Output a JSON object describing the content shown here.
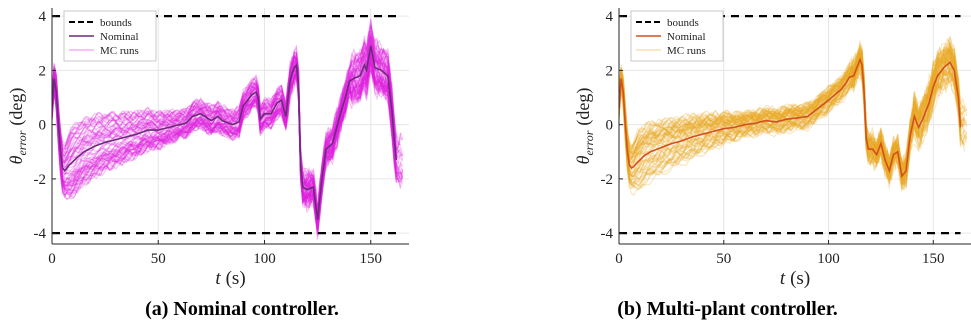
{
  "chart_data": [
    {
      "type": "line",
      "panel_label": "(a) Nominal controller.",
      "xlabel": "t (s)",
      "xlabel_var": "t",
      "xlabel_unit": "(s)",
      "ylabel": "θ_error (deg)",
      "ylabel_var": "θ",
      "ylabel_sub": "error",
      "ylabel_unit": "(deg)",
      "xlim": [
        0,
        168
      ],
      "ylim": [
        -4.4,
        4.3
      ],
      "xticks": [
        0,
        50,
        100,
        150
      ],
      "yticks": [
        -4,
        -2,
        0,
        2,
        4
      ],
      "grid": true,
      "legend_position": "top-left",
      "colors": {
        "bounds": "#000000",
        "nominal": "#6a2c7a",
        "mc": "#e020e0"
      },
      "series": [
        {
          "name": "bounds",
          "style": "dashed",
          "upper": 4,
          "lower": -4,
          "x_range": [
            0,
            163
          ]
        },
        {
          "name": "Nominal",
          "x": [
            0,
            1,
            2,
            3,
            4,
            5,
            6,
            7,
            8,
            10,
            12,
            15,
            20,
            25,
            30,
            35,
            40,
            45,
            50,
            55,
            60,
            63,
            66,
            70,
            75,
            78,
            80,
            85,
            88,
            90,
            94,
            96,
            97,
            98,
            100,
            103,
            106,
            108,
            110,
            112,
            113,
            114,
            115,
            116,
            117,
            118,
            120,
            123,
            125,
            127,
            129,
            132,
            135,
            138,
            140,
            142,
            145,
            147,
            148,
            150,
            152,
            155,
            158,
            160,
            161,
            162
          ],
          "y": [
            0.6,
            1.7,
            1.2,
            0.0,
            -1.0,
            -1.6,
            -1.7,
            -1.6,
            -1.5,
            -1.35,
            -1.2,
            -1.0,
            -0.8,
            -0.65,
            -0.55,
            -0.45,
            -0.35,
            -0.2,
            -0.2,
            -0.1,
            0.0,
            0.05,
            0.3,
            0.4,
            0.15,
            0.3,
            0.15,
            0.0,
            0.1,
            0.7,
            1.1,
            1.2,
            1.0,
            0.2,
            0.4,
            0.4,
            0.8,
            0.9,
            0.3,
            1.6,
            1.9,
            2.1,
            2.2,
            1.5,
            -1.5,
            -2.3,
            -2.4,
            -2.3,
            -3.5,
            -2.0,
            -0.9,
            -0.7,
            0.2,
            1.0,
            1.6,
            1.7,
            1.8,
            2.2,
            2.0,
            2.9,
            2.1,
            2.0,
            1.8,
            0.5,
            -0.5,
            -1.3
          ]
        },
        {
          "name": "MC runs",
          "band_halfwidth_deg": 0.8
        }
      ]
    },
    {
      "type": "line",
      "panel_label": "(b) Multi-plant controller.",
      "xlabel": "t (s)",
      "xlabel_var": "t",
      "xlabel_unit": "(s)",
      "ylabel": "θ_error (deg)",
      "ylabel_var": "θ",
      "ylabel_sub": "error",
      "ylabel_unit": "(deg)",
      "xlim": [
        0,
        168
      ],
      "ylim": [
        -4.4,
        4.3
      ],
      "xticks": [
        0,
        50,
        100,
        150
      ],
      "yticks": [
        -4,
        -2,
        0,
        2,
        4
      ],
      "grid": true,
      "legend_position": "top-left",
      "colors": {
        "bounds": "#000000",
        "nominal": "#d2501e",
        "mc": "#e8a825"
      },
      "series": [
        {
          "name": "bounds",
          "style": "dashed",
          "upper": 4,
          "lower": -4,
          "x_range": [
            0,
            163
          ]
        },
        {
          "name": "Nominal",
          "x": [
            0,
            1,
            2,
            3,
            4,
            5,
            6,
            7,
            8,
            10,
            12,
            15,
            20,
            25,
            30,
            35,
            40,
            45,
            50,
            55,
            60,
            65,
            70,
            75,
            80,
            85,
            90,
            95,
            100,
            103,
            106,
            108,
            110,
            112,
            114,
            115,
            116,
            117,
            118,
            119,
            121,
            123,
            125,
            127,
            129,
            131,
            133,
            135,
            137,
            139,
            141,
            143,
            145,
            148,
            150,
            152,
            155,
            158,
            160,
            162,
            163
          ],
          "y": [
            0.6,
            1.7,
            1.2,
            0.0,
            -1.0,
            -1.5,
            -1.6,
            -1.55,
            -1.45,
            -1.3,
            -1.15,
            -1.0,
            -0.85,
            -0.7,
            -0.6,
            -0.45,
            -0.35,
            -0.25,
            -0.15,
            -0.1,
            0.0,
            0.05,
            0.15,
            0.1,
            0.2,
            0.25,
            0.3,
            0.6,
            0.9,
            1.1,
            1.3,
            1.5,
            1.75,
            1.8,
            2.2,
            2.4,
            2.2,
            1.2,
            -0.5,
            -0.9,
            -0.9,
            -1.1,
            -0.7,
            -1.3,
            -1.7,
            -1.1,
            -1.0,
            -1.9,
            -1.7,
            -0.4,
            0.3,
            -0.1,
            0.2,
            0.8,
            1.4,
            1.8,
            2.1,
            2.3,
            2.0,
            1.0,
            -0.1
          ]
        },
        {
          "name": "MC runs",
          "band_halfwidth_deg": 0.7
        }
      ]
    }
  ]
}
